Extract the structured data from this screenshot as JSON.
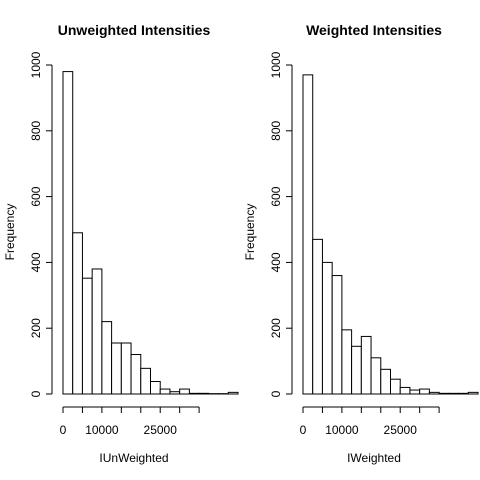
{
  "chart_data": [
    {
      "type": "bar",
      "title": "Unweighted Intensities",
      "xlabel": "IUnWeighted",
      "ylabel": "Frequency",
      "bin_width": 2500,
      "bins_start": 0,
      "values": [
        980,
        490,
        352,
        380,
        220,
        155,
        155,
        120,
        78,
        38,
        15,
        7,
        15,
        2,
        2,
        1,
        1,
        5
      ],
      "xlim": [
        0,
        36000
      ],
      "ylim": [
        0,
        1000
      ],
      "x_ticks": [
        0,
        10000,
        25000
      ],
      "x_tick_labels": [
        "0",
        "10000",
        "25000"
      ],
      "x_axis_ticks": [
        0,
        5000,
        10000,
        15000,
        20000,
        25000,
        30000,
        35000
      ],
      "y_ticks": [
        0,
        200,
        400,
        600,
        800,
        1000
      ],
      "y_tick_labels": [
        "0",
        "200",
        "400",
        "600",
        "800",
        "1000"
      ]
    },
    {
      "type": "bar",
      "title": "Weighted Intensities",
      "xlabel": "IWeighted",
      "ylabel": "Frequency",
      "bin_width": 2500,
      "bins_start": 0,
      "values": [
        970,
        470,
        400,
        360,
        195,
        145,
        175,
        110,
        75,
        45,
        20,
        12,
        15,
        5,
        2,
        2,
        2,
        5
      ],
      "xlim": [
        0,
        36000
      ],
      "ylim": [
        0,
        1000
      ],
      "x_ticks": [
        0,
        10000,
        25000
      ],
      "x_tick_labels": [
        "0",
        "10000",
        "25000"
      ],
      "x_axis_ticks": [
        0,
        5000,
        10000,
        15000,
        20000,
        25000,
        30000,
        35000
      ],
      "y_ticks": [
        0,
        200,
        400,
        600,
        800,
        1000
      ],
      "y_tick_labels": [
        "0",
        "200",
        "400",
        "600",
        "800",
        "1000"
      ]
    }
  ]
}
